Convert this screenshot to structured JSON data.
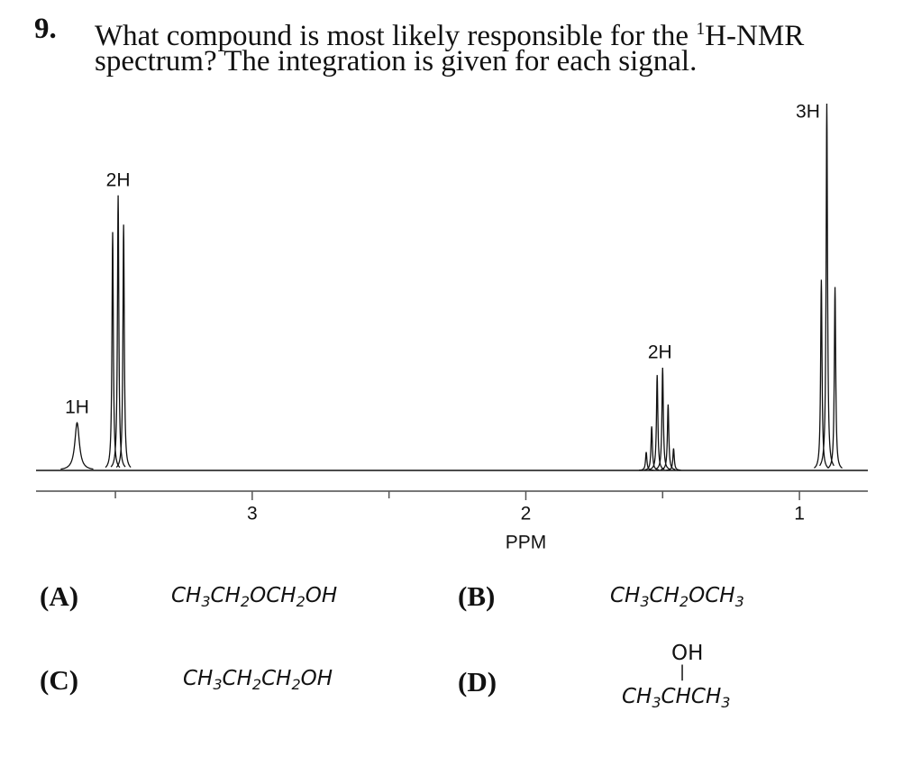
{
  "question": {
    "number": "9.",
    "line1_before": "What compound is most likely responsible for the ",
    "line1_superscript": "1",
    "line1_after": "H-NMR",
    "line2": "spectrum? The integration is given for each signal."
  },
  "spectrum": {
    "type": "nmr",
    "xlim": [
      3.79,
      0.75
    ],
    "xticks": [
      3,
      2,
      1
    ],
    "minor_xticks": [
      3.5,
      2.5,
      1.5
    ],
    "xlabel": "PPM",
    "ylim": [
      0,
      100
    ],
    "signals": [
      {
        "label": "1H",
        "linewidth": 0.01,
        "ppm": [
          3.64
        ],
        "heights": [
          13
        ]
      },
      {
        "label": "2H",
        "linewidth": 0.003,
        "ppm": [
          3.51,
          3.49,
          3.47
        ],
        "heights": [
          65,
          75,
          67
        ]
      },
      {
        "label": "2H",
        "linewidth": 0.003,
        "ppm": [
          1.56,
          1.54,
          1.52,
          1.5,
          1.48,
          1.46
        ],
        "heights": [
          5,
          12,
          26,
          28,
          18,
          6
        ]
      },
      {
        "label": "3H",
        "linewidth": 0.003,
        "ppm": [
          0.92,
          0.9,
          0.87
        ],
        "heights": [
          52,
          100,
          50
        ]
      }
    ]
  },
  "options": [
    {
      "letter": "(A)",
      "formula": "CH3CH2OCH2OH"
    },
    {
      "letter": "(B)",
      "formula": "CH3CH2OCH3"
    },
    {
      "letter": "(C)",
      "formula": "CH3CH2CH2OH"
    },
    {
      "letter": "(D)",
      "substituent": "OH",
      "bond": "|",
      "formula": "CH3CHCH3"
    }
  ]
}
